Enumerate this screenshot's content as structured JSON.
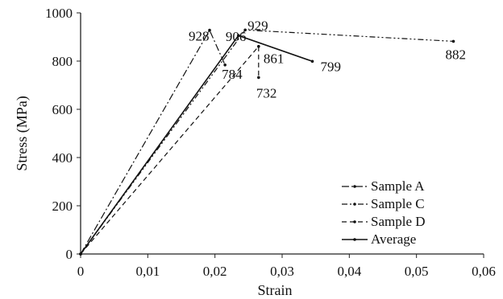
{
  "chart_data": {
    "type": "line",
    "xlabel": "Strain",
    "ylabel": "Stress (MPa)",
    "xlim": [
      0,
      0.06
    ],
    "ylim": [
      0,
      1000
    ],
    "x_ticks": [
      0,
      0.01,
      0.02,
      0.03,
      0.04,
      0.05,
      0.06
    ],
    "x_tick_labels": [
      "0",
      "0,01",
      "0,02",
      "0,03",
      "0,04",
      "0,05",
      "0,06"
    ],
    "y_ticks": [
      0,
      200,
      400,
      600,
      800,
      1000
    ],
    "y_tick_labels": [
      "0",
      "200",
      "400",
      "600",
      "800",
      "1000"
    ],
    "grid": false,
    "legend_position": "bottom-right",
    "series": [
      {
        "name": "Sample A",
        "dash": "dash-dot",
        "points": [
          [
            0,
            0
          ],
          [
            0.0192,
            928
          ],
          [
            0.0215,
            784
          ]
        ]
      },
      {
        "name": "Sample C",
        "dash": "dash-dot-dot",
        "points": [
          [
            0,
            0
          ],
          [
            0.0245,
            929
          ],
          [
            0.0555,
            882
          ]
        ]
      },
      {
        "name": "Sample D",
        "dash": "dashed",
        "points": [
          [
            0,
            0
          ],
          [
            0.0265,
            861
          ],
          [
            0.0265,
            732
          ]
        ]
      },
      {
        "name": "Average",
        "dash": "solid",
        "points": [
          [
            0,
            0
          ],
          [
            0.0235,
            906
          ],
          [
            0.0345,
            799
          ]
        ]
      }
    ],
    "annotations": [
      {
        "text": "928",
        "x": 0.0192,
        "y": 928
      },
      {
        "text": "906",
        "x": 0.0235,
        "y": 906
      },
      {
        "text": "929",
        "x": 0.0245,
        "y": 929
      },
      {
        "text": "861",
        "x": 0.0265,
        "y": 861
      },
      {
        "text": "784",
        "x": 0.0215,
        "y": 784
      },
      {
        "text": "732",
        "x": 0.0265,
        "y": 732
      },
      {
        "text": "799",
        "x": 0.0345,
        "y": 799
      },
      {
        "text": "882",
        "x": 0.0555,
        "y": 882
      }
    ]
  }
}
